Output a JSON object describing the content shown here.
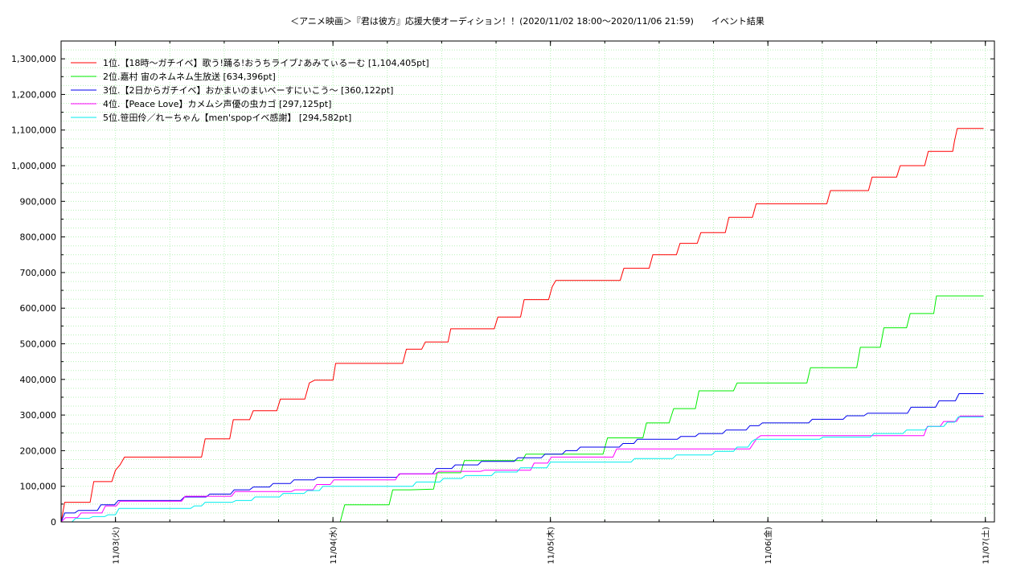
{
  "chart_data": {
    "type": "line",
    "title": "＜アニメ映画＞『君は彼方』応援大使オーディション！！(2020/11/02 18:00〜2020/11/06 21:59)　　イベント結果",
    "xlabel": "",
    "ylabel": "",
    "x_start": "11/02 18:00",
    "ylim": [
      0,
      1350000
    ],
    "y_ticks": [
      0,
      100000,
      200000,
      300000,
      400000,
      500000,
      600000,
      700000,
      800000,
      900000,
      1000000,
      1100000,
      1200000,
      1300000
    ],
    "y_tick_labels": [
      "0",
      "100,000",
      "200,000",
      "300,000",
      "400,000",
      "500,000",
      "600,000",
      "700,000",
      "800,000",
      "900,000",
      "1,000,000",
      "1,100,000",
      "1,200,000",
      "1,300,000"
    ],
    "x_ticks": [
      {
        "label": "11/03(火)",
        "hours": 6
      },
      {
        "label": "11/04(水)",
        "hours": 30
      },
      {
        "label": "11/05(木)",
        "hours": 54
      },
      {
        "label": "11/06(金)",
        "hours": 78
      },
      {
        "label": "11/07(土)",
        "hours": 102
      }
    ],
    "xlim_hours": [
      0,
      103
    ],
    "grid": true,
    "legend_position": "top-left",
    "series": [
      {
        "name": "1位.【18時〜ガチイベ】歌う!踊る!おうちライブ♪あみてぃるーむ [1,104,405pt]",
        "color": "#ff0000",
        "points": [
          [
            0,
            0
          ],
          [
            0.4,
            55000
          ],
          [
            3.2,
            55000
          ],
          [
            3.6,
            113000
          ],
          [
            5.6,
            113000
          ],
          [
            6.0,
            145000
          ],
          [
            6.5,
            160000
          ],
          [
            7.0,
            182000
          ],
          [
            15.5,
            182000
          ],
          [
            15.9,
            233000
          ],
          [
            18.6,
            233000
          ],
          [
            19.0,
            287000
          ],
          [
            20.8,
            287000
          ],
          [
            21.2,
            312000
          ],
          [
            23.8,
            312000
          ],
          [
            24.2,
            345000
          ],
          [
            26.9,
            345000
          ],
          [
            27.4,
            390000
          ],
          [
            28.0,
            398000
          ],
          [
            30.0,
            398000
          ],
          [
            30.3,
            445000
          ],
          [
            37.7,
            445000
          ],
          [
            38.1,
            485000
          ],
          [
            39.8,
            485000
          ],
          [
            40.2,
            505000
          ],
          [
            42.7,
            505000
          ],
          [
            43.0,
            542000
          ],
          [
            47.8,
            542000
          ],
          [
            48.2,
            575000
          ],
          [
            50.7,
            575000
          ],
          [
            51.1,
            624000
          ],
          [
            53.8,
            624000
          ],
          [
            54.2,
            660000
          ],
          [
            54.6,
            678000
          ],
          [
            61.7,
            678000
          ],
          [
            62.1,
            712000
          ],
          [
            64.9,
            712000
          ],
          [
            65.3,
            750000
          ],
          [
            67.9,
            750000
          ],
          [
            68.3,
            782000
          ],
          [
            70.2,
            782000
          ],
          [
            70.6,
            812000
          ],
          [
            73.3,
            812000
          ],
          [
            73.7,
            855000
          ],
          [
            76.3,
            855000
          ],
          [
            76.7,
            893000
          ],
          [
            84.5,
            893000
          ],
          [
            84.9,
            930000
          ],
          [
            89.1,
            930000
          ],
          [
            89.5,
            968000
          ],
          [
            92.2,
            968000
          ],
          [
            92.6,
            1000000
          ],
          [
            95.3,
            1000000
          ],
          [
            95.7,
            1040000
          ],
          [
            98.4,
            1040000
          ],
          [
            98.6,
            1070000
          ],
          [
            98.9,
            1104405
          ],
          [
            101.8,
            1104405
          ]
        ]
      },
      {
        "name": "2位.嘉村 宙のネムネム生放送 [634,396pt]",
        "color": "#00ee00",
        "points": [
          [
            30.8,
            0
          ],
          [
            31.3,
            48000
          ],
          [
            36.2,
            48000
          ],
          [
            36.6,
            90000
          ],
          [
            38.5,
            90000
          ],
          [
            41.1,
            92000
          ],
          [
            41.5,
            138000
          ],
          [
            44.1,
            138000
          ],
          [
            44.5,
            172000
          ],
          [
            50.9,
            172000
          ],
          [
            51.3,
            190000
          ],
          [
            59.8,
            190000
          ],
          [
            60.3,
            236000
          ],
          [
            64.2,
            236000
          ],
          [
            64.6,
            278000
          ],
          [
            67.1,
            278000
          ],
          [
            67.6,
            318000
          ],
          [
            70.0,
            318000
          ],
          [
            70.4,
            368000
          ],
          [
            74.2,
            368000
          ],
          [
            74.6,
            390000
          ],
          [
            82.3,
            390000
          ],
          [
            82.7,
            433000
          ],
          [
            87.8,
            433000
          ],
          [
            88.2,
            490000
          ],
          [
            90.4,
            490000
          ],
          [
            90.8,
            545000
          ],
          [
            93.3,
            545000
          ],
          [
            93.7,
            585000
          ],
          [
            96.3,
            585000
          ],
          [
            96.6,
            634396
          ],
          [
            101.8,
            634396
          ]
        ]
      },
      {
        "name": "3位.【2日からガチイベ】おかまいのまいベーすにいこう〜 [360,122pt]",
        "color": "#0000ee",
        "points": [
          [
            0,
            0
          ],
          [
            0.4,
            25000
          ],
          [
            1.5,
            25000
          ],
          [
            1.9,
            32000
          ],
          [
            4.0,
            32000
          ],
          [
            4.4,
            48000
          ],
          [
            5.9,
            48000
          ],
          [
            6.3,
            60000
          ],
          [
            13.2,
            60000
          ],
          [
            13.6,
            70000
          ],
          [
            16.0,
            70000
          ],
          [
            16.4,
            78000
          ],
          [
            18.7,
            78000
          ],
          [
            19.1,
            90000
          ],
          [
            20.8,
            90000
          ],
          [
            21.2,
            98000
          ],
          [
            23.0,
            98000
          ],
          [
            23.4,
            108000
          ],
          [
            25.3,
            108000
          ],
          [
            25.7,
            118000
          ],
          [
            27.9,
            118000
          ],
          [
            28.3,
            125000
          ],
          [
            37.0,
            125000
          ],
          [
            37.4,
            135000
          ],
          [
            41.0,
            135000
          ],
          [
            41.4,
            150000
          ],
          [
            43.1,
            150000
          ],
          [
            43.5,
            160000
          ],
          [
            46.0,
            160000
          ],
          [
            46.4,
            170000
          ],
          [
            50.0,
            170000
          ],
          [
            50.4,
            180000
          ],
          [
            53.0,
            180000
          ],
          [
            53.4,
            190000
          ],
          [
            55.3,
            190000
          ],
          [
            55.7,
            200000
          ],
          [
            56.9,
            200000
          ],
          [
            57.3,
            210000
          ],
          [
            61.6,
            210000
          ],
          [
            62.0,
            220000
          ],
          [
            63.2,
            220000
          ],
          [
            63.6,
            232000
          ],
          [
            68.0,
            232000
          ],
          [
            68.4,
            240000
          ],
          [
            70.0,
            240000
          ],
          [
            70.4,
            248000
          ],
          [
            73.0,
            248000
          ],
          [
            73.4,
            258000
          ],
          [
            75.6,
            258000
          ],
          [
            76.0,
            270000
          ],
          [
            77.0,
            270000
          ],
          [
            77.4,
            278000
          ],
          [
            82.5,
            278000
          ],
          [
            82.9,
            288000
          ],
          [
            86.3,
            288000
          ],
          [
            86.7,
            298000
          ],
          [
            88.6,
            298000
          ],
          [
            89.0,
            305000
          ],
          [
            93.4,
            305000
          ],
          [
            93.8,
            322000
          ],
          [
            96.5,
            322000
          ],
          [
            96.9,
            340000
          ],
          [
            98.7,
            340000
          ],
          [
            99.1,
            360122
          ],
          [
            101.8,
            360122
          ]
        ]
      },
      {
        "name": "4位.【Peace Love】カメムシ声優の虫カゴ [297,125pt]",
        "color": "#ff00ff",
        "points": [
          [
            0,
            0
          ],
          [
            0.5,
            12000
          ],
          [
            1.8,
            12000
          ],
          [
            2.2,
            25000
          ],
          [
            4.5,
            25000
          ],
          [
            4.9,
            45000
          ],
          [
            6.1,
            45000
          ],
          [
            6.5,
            58000
          ],
          [
            13.3,
            58000
          ],
          [
            13.7,
            72000
          ],
          [
            18.8,
            72000
          ],
          [
            19.2,
            85000
          ],
          [
            25.4,
            85000
          ],
          [
            25.8,
            90000
          ],
          [
            27.8,
            90000
          ],
          [
            28.2,
            105000
          ],
          [
            29.7,
            105000
          ],
          [
            30.1,
            118000
          ],
          [
            36.9,
            118000
          ],
          [
            37.3,
            135000
          ],
          [
            41.3,
            135000
          ],
          [
            41.7,
            142000
          ],
          [
            46.3,
            142000
          ],
          [
            46.7,
            145000
          ],
          [
            51.8,
            145000
          ],
          [
            52.2,
            165000
          ],
          [
            53.7,
            165000
          ],
          [
            54.1,
            182000
          ],
          [
            60.9,
            182000
          ],
          [
            61.3,
            205000
          ],
          [
            76.0,
            205000
          ],
          [
            76.4,
            220000
          ],
          [
            76.8,
            235000
          ],
          [
            77.2,
            242000
          ],
          [
            95.2,
            242000
          ],
          [
            95.6,
            268000
          ],
          [
            97.0,
            268000
          ],
          [
            97.4,
            282000
          ],
          [
            98.8,
            282000
          ],
          [
            99.2,
            297125
          ],
          [
            101.8,
            297125
          ]
        ]
      },
      {
        "name": "5位.笹田伶／れーちゃん【men'spopイベ感謝】 [294,582pt]",
        "color": "#00eeee",
        "points": [
          [
            1.2,
            0
          ],
          [
            1.6,
            10000
          ],
          [
            3.1,
            10000
          ],
          [
            3.5,
            15000
          ],
          [
            4.8,
            15000
          ],
          [
            5.2,
            20000
          ],
          [
            6.0,
            20000
          ],
          [
            6.4,
            38000
          ],
          [
            14.3,
            38000
          ],
          [
            14.7,
            45000
          ],
          [
            15.5,
            45000
          ],
          [
            15.9,
            55000
          ],
          [
            18.9,
            55000
          ],
          [
            19.3,
            60000
          ],
          [
            21.0,
            60000
          ],
          [
            21.4,
            70000
          ],
          [
            24.1,
            70000
          ],
          [
            24.5,
            80000
          ],
          [
            26.8,
            80000
          ],
          [
            27.2,
            88000
          ],
          [
            28.5,
            88000
          ],
          [
            28.9,
            100000
          ],
          [
            38.8,
            100000
          ],
          [
            39.2,
            112000
          ],
          [
            41.8,
            112000
          ],
          [
            42.2,
            122000
          ],
          [
            44.2,
            122000
          ],
          [
            44.6,
            130000
          ],
          [
            47.5,
            130000
          ],
          [
            47.9,
            140000
          ],
          [
            50.3,
            140000
          ],
          [
            50.7,
            152000
          ],
          [
            53.6,
            152000
          ],
          [
            54.0,
            168000
          ],
          [
            62.9,
            168000
          ],
          [
            63.3,
            178000
          ],
          [
            67.5,
            178000
          ],
          [
            67.9,
            188000
          ],
          [
            71.8,
            188000
          ],
          [
            72.2,
            198000
          ],
          [
            74.2,
            198000
          ],
          [
            74.6,
            210000
          ],
          [
            75.8,
            210000
          ],
          [
            76.2,
            225000
          ],
          [
            76.6,
            232000
          ],
          [
            83.7,
            232000
          ],
          [
            84.1,
            238000
          ],
          [
            89.3,
            238000
          ],
          [
            89.7,
            248000
          ],
          [
            92.9,
            248000
          ],
          [
            93.3,
            258000
          ],
          [
            95.3,
            258000
          ],
          [
            95.7,
            268000
          ],
          [
            97.4,
            268000
          ],
          [
            97.8,
            280000
          ],
          [
            98.6,
            280000
          ],
          [
            99.0,
            294582
          ],
          [
            101.8,
            294582
          ]
        ]
      }
    ]
  }
}
